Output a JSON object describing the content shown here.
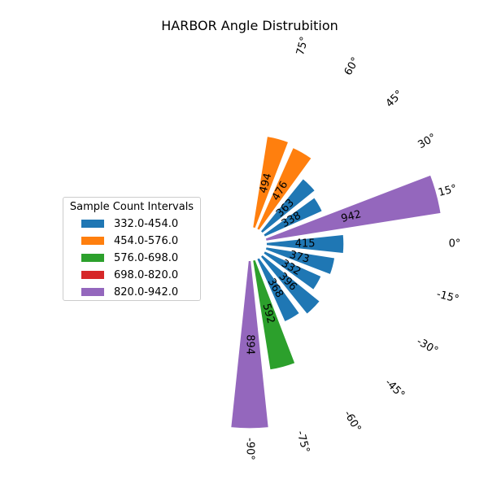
{
  "chart_data": {
    "type": "polar-bar",
    "title": "HARBOR Angle Distrubition",
    "angles_deg": [
      -90,
      -75,
      -60,
      -45,
      -30,
      -15,
      0,
      15,
      30,
      45,
      60,
      75
    ],
    "angle_labels": [
      "-90°",
      "-75°",
      "-60°",
      "-45°",
      "-30°",
      "-15°",
      "0°",
      "15°",
      "30°",
      "45°",
      "60°",
      "75°"
    ],
    "values": [
      894,
      592,
      368,
      396,
      332,
      373,
      415,
      942,
      338,
      363,
      476,
      494
    ],
    "bar_colors": [
      "#9467bd",
      "#2ca02c",
      "#1f77b4",
      "#1f77b4",
      "#1f77b4",
      "#1f77b4",
      "#1f77b4",
      "#9467bd",
      "#1f77b4",
      "#1f77b4",
      "#ff7f0e",
      "#ff7f0e"
    ],
    "legend": {
      "title": "Sample Count Intervals",
      "placement": "left",
      "items": [
        {
          "label": "332.0-454.0",
          "color": "#1f77b4"
        },
        {
          "label": "454.0-576.0",
          "color": "#ff7f0e"
        },
        {
          "label": "576.0-698.0",
          "color": "#2ca02c"
        },
        {
          "label": "698.0-820.0",
          "color": "#d62728"
        },
        {
          "label": "820.0-942.0",
          "color": "#9467bd"
        }
      ]
    }
  }
}
